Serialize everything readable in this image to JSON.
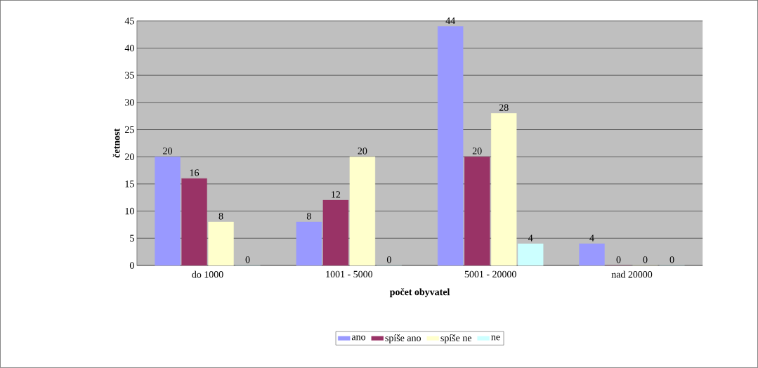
{
  "chart_data": {
    "type": "bar",
    "xlabel": "počet obyvatel",
    "ylabel": "četnost",
    "categories": [
      "do 1000",
      "1001 - 5000",
      "5001 - 20000",
      "nad 20000"
    ],
    "series": [
      {
        "name": "ano",
        "color": "#9999ff",
        "values": [
          20,
          8,
          44,
          4
        ]
      },
      {
        "name": "spíše ano",
        "color": "#993366",
        "values": [
          16,
          12,
          20,
          0
        ]
      },
      {
        "name": "spíše ne",
        "color": "#ffffcc",
        "values": [
          8,
          20,
          28,
          0
        ]
      },
      {
        "name": "ne",
        "color": "#ccffff",
        "values": [
          0,
          0,
          4,
          0
        ]
      }
    ],
    "ylim": [
      0,
      45
    ],
    "yticks": [
      0,
      5,
      10,
      15,
      20,
      25,
      30,
      35,
      40,
      45
    ],
    "grid": "y",
    "legend": "bottom",
    "data_labels": true
  }
}
